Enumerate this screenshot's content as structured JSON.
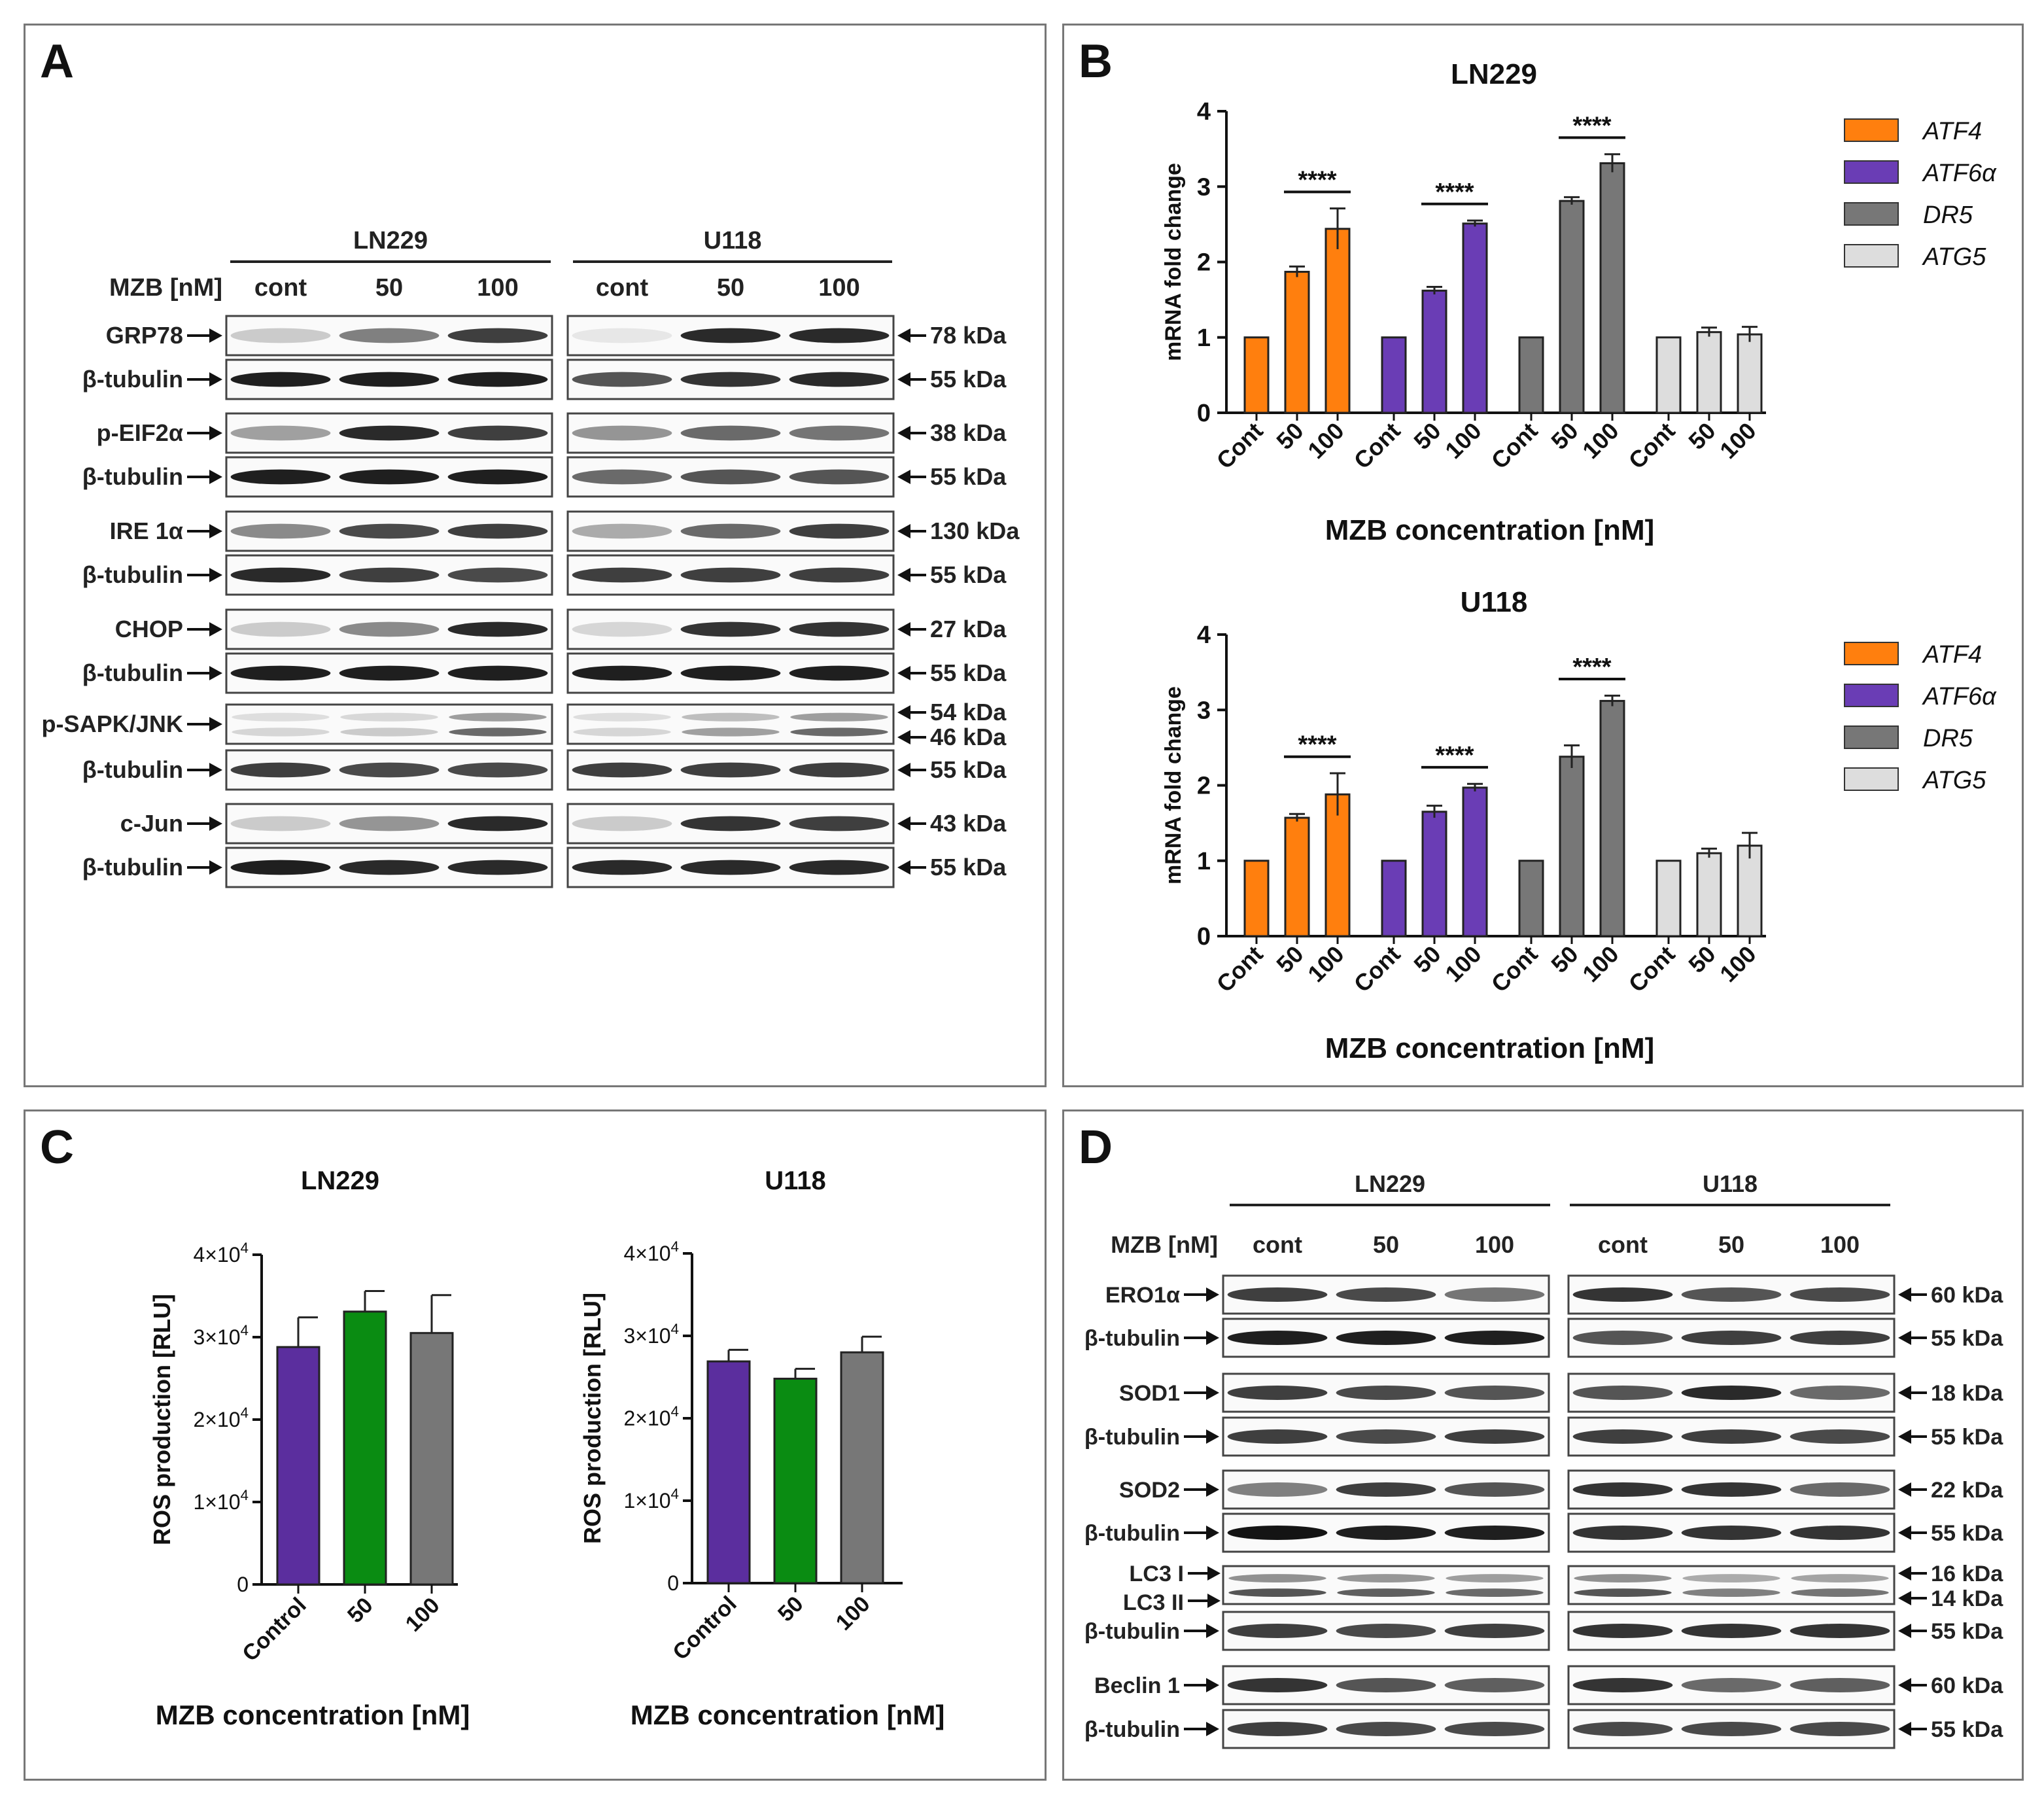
{
  "panel_A": {
    "label": "A",
    "mzb_label": "MZB [nM]",
    "lines": [
      "LN229",
      "U118"
    ],
    "lanes": [
      "cont",
      "50",
      "100"
    ],
    "blots": [
      {
        "protein": "GRP78",
        "kda": [
          "78 kDa"
        ],
        "ln": [
          0.15,
          0.5,
          0.8
        ],
        "u": [
          0.02,
          0.9,
          0.9
        ]
      },
      {
        "protein": "β-tubulin",
        "kda": [
          "55 kDa"
        ],
        "ln": [
          0.95,
          0.95,
          0.95
        ],
        "u": [
          0.7,
          0.85,
          0.9
        ]
      },
      {
        "protein": "p-EIF2α",
        "kda": [
          "38 kDa"
        ],
        "ln": [
          0.35,
          0.9,
          0.8
        ],
        "u": [
          0.4,
          0.6,
          0.55
        ]
      },
      {
        "protein": "β-tubulin",
        "kda": [
          "55 kDa"
        ],
        "ln": [
          0.95,
          0.95,
          0.95
        ],
        "u": [
          0.6,
          0.7,
          0.7
        ]
      },
      {
        "protein": "IRE 1α",
        "kda": [
          "130 kDa"
        ],
        "ln": [
          0.45,
          0.75,
          0.8
        ],
        "u": [
          0.3,
          0.6,
          0.8
        ]
      },
      {
        "protein": "β-tubulin",
        "kda": [
          "55 kDa"
        ],
        "ln": [
          0.9,
          0.8,
          0.75
        ],
        "u": [
          0.8,
          0.8,
          0.8
        ]
      },
      {
        "protein": "CHOP",
        "kda": [
          "27 kDa"
        ],
        "ln": [
          0.15,
          0.45,
          0.9
        ],
        "u": [
          0.1,
          0.85,
          0.85
        ]
      },
      {
        "protein": "β-tubulin",
        "kda": [
          "55 kDa"
        ],
        "ln": [
          0.95,
          0.95,
          0.95
        ],
        "u": [
          0.95,
          0.95,
          0.95
        ]
      },
      {
        "protein": "p-SAPK/JNK",
        "kda": [
          "54 kDa",
          "46 kDa"
        ],
        "ln": [
          0.1,
          0.15,
          0.6
        ],
        "u": [
          0.1,
          0.35,
          0.6
        ],
        "double": true
      },
      {
        "protein": "β-tubulin",
        "kda": [
          "55 kDa"
        ],
        "ln": [
          0.8,
          0.75,
          0.75
        ],
        "u": [
          0.8,
          0.8,
          0.8
        ]
      },
      {
        "protein": "c-Jun",
        "kda": [
          "43 kDa"
        ],
        "ln": [
          0.15,
          0.4,
          0.9
        ],
        "u": [
          0.15,
          0.85,
          0.8
        ]
      },
      {
        "protein": "β-tubulin",
        "kda": [
          "55 kDa"
        ],
        "ln": [
          0.95,
          0.9,
          0.9
        ],
        "u": [
          0.9,
          0.9,
          0.9
        ]
      }
    ]
  },
  "panel_B": {
    "label": "B"
  },
  "panel_C": {
    "label": "C"
  },
  "panel_D": {
    "label": "D",
    "mzb_label": "MZB [nM]",
    "lines": [
      "LN229",
      "U118"
    ],
    "lanes": [
      "cont",
      "50",
      "100"
    ],
    "blots": [
      {
        "protein": "ERO1α",
        "kda": [
          "60 kDa"
        ],
        "ln": [
          0.8,
          0.75,
          0.55
        ],
        "u": [
          0.85,
          0.7,
          0.75
        ]
      },
      {
        "protein": "β-tubulin",
        "kda": [
          "55 kDa"
        ],
        "ln": [
          0.95,
          0.95,
          0.95
        ],
        "u": [
          0.7,
          0.8,
          0.8
        ]
      },
      {
        "protein": "SOD1",
        "kda": [
          "18 kDa"
        ],
        "ln": [
          0.8,
          0.75,
          0.7
        ],
        "u": [
          0.7,
          0.9,
          0.6
        ]
      },
      {
        "protein": "β-tubulin",
        "kda": [
          "55 kDa"
        ],
        "ln": [
          0.8,
          0.75,
          0.8
        ],
        "u": [
          0.8,
          0.8,
          0.75
        ]
      },
      {
        "protein": "SOD2",
        "kda": [
          "22 kDa"
        ],
        "ln": [
          0.5,
          0.8,
          0.7
        ],
        "u": [
          0.85,
          0.85,
          0.6
        ]
      },
      {
        "protein": "β-tubulin",
        "kda": [
          "55 kDa"
        ],
        "ln": [
          1.0,
          0.95,
          0.95
        ],
        "u": [
          0.85,
          0.85,
          0.85
        ]
      },
      {
        "protein": "LC3 I",
        "protein2": "LC3 II",
        "kda": [
          "16 kDa",
          "14 kDa"
        ],
        "ln": [
          0.7,
          0.65,
          0.6
        ],
        "u": [
          0.7,
          0.5,
          0.55
        ],
        "double": true
      },
      {
        "protein": "β-tubulin",
        "kda": [
          "55 kDa"
        ],
        "ln": [
          0.8,
          0.75,
          0.8
        ],
        "u": [
          0.85,
          0.85,
          0.85
        ]
      },
      {
        "protein": "Beclin 1",
        "kda": [
          "60 kDa"
        ],
        "ln": [
          0.85,
          0.7,
          0.65
        ],
        "u": [
          0.85,
          0.6,
          0.65
        ]
      },
      {
        "protein": "β-tubulin",
        "kda": [
          "55 kDa"
        ],
        "ln": [
          0.8,
          0.75,
          0.75
        ],
        "u": [
          0.75,
          0.75,
          0.75
        ]
      }
    ]
  },
  "chart_data": [
    {
      "id": "B-LN229",
      "type": "bar",
      "title": "LN229",
      "ylabel": "mRNA fold change",
      "xlabel": "MZB concentration [nM]",
      "ylim": [
        0,
        4
      ],
      "yticks": [
        "0",
        "1",
        "2",
        "3",
        "4"
      ],
      "categories": [
        "Cont",
        "50",
        "100"
      ],
      "series": [
        {
          "name": "ATF4",
          "color": "#ff7f0e",
          "values": [
            1.0,
            1.87,
            2.44
          ],
          "errors": [
            0,
            0.07,
            0.27
          ]
        },
        {
          "name": "ATF6α",
          "color": "#6a3db5",
          "values": [
            1.0,
            1.62,
            2.51
          ],
          "errors": [
            0,
            0.05,
            0.04
          ]
        },
        {
          "name": "DR5",
          "color": "#777777",
          "values": [
            1.0,
            2.81,
            3.31
          ],
          "errors": [
            0,
            0.05,
            0.12
          ]
        },
        {
          "name": "ATG5",
          "color": "#dddddd",
          "values": [
            1.0,
            1.07,
            1.04
          ],
          "errors": [
            0,
            0.06,
            0.1
          ]
        }
      ],
      "significance": [
        "****",
        "****",
        "****"
      ]
    },
    {
      "id": "B-U118",
      "type": "bar",
      "title": "U118",
      "ylabel": "mRNA fold change",
      "xlabel": "MZB concentration [nM]",
      "ylim": [
        0,
        4
      ],
      "yticks": [
        "0",
        "1",
        "2",
        "3",
        "4"
      ],
      "categories": [
        "Cont",
        "50",
        "100"
      ],
      "series": [
        {
          "name": "ATF4",
          "color": "#ff7f0e",
          "values": [
            1.0,
            1.57,
            1.88
          ],
          "errors": [
            0,
            0.05,
            0.28
          ]
        },
        {
          "name": "ATF6α",
          "color": "#6a3db5",
          "values": [
            1.0,
            1.65,
            1.97
          ],
          "errors": [
            0,
            0.08,
            0.05
          ]
        },
        {
          "name": "DR5",
          "color": "#777777",
          "values": [
            1.0,
            2.38,
            3.12
          ],
          "errors": [
            0,
            0.15,
            0.07
          ]
        },
        {
          "name": "ATG5",
          "color": "#dddddd",
          "values": [
            1.0,
            1.1,
            1.2
          ],
          "errors": [
            0,
            0.06,
            0.17
          ]
        }
      ],
      "significance": [
        "****",
        "****",
        "****"
      ]
    },
    {
      "id": "C-LN229",
      "type": "bar",
      "title": "LN229",
      "ylabel": "ROS production [RLU]",
      "xlabel": "MZB concentration [nM]",
      "ylim": [
        0,
        40000
      ],
      "ytick_base": "×10",
      "yticks": [
        "0",
        "1",
        "2",
        "3",
        "4"
      ],
      "categories": [
        "Control",
        "50",
        "100"
      ],
      "colors": [
        "#5b2e9e",
        "#0a8c12",
        "#777777"
      ],
      "values": [
        28800,
        33100,
        30500
      ],
      "errors": [
        3600,
        2500,
        4600
      ]
    },
    {
      "id": "C-U118",
      "type": "bar",
      "title": "U118",
      "ylabel": "ROS production [RLU]",
      "xlabel": "MZB concentration [nM]",
      "ylim": [
        0,
        40000
      ],
      "ytick_base": "×10",
      "yticks": [
        "0",
        "1",
        "2",
        "3",
        "4"
      ],
      "categories": [
        "Control",
        "50",
        "100"
      ],
      "colors": [
        "#5b2e9e",
        "#0a8c12",
        "#777777"
      ],
      "values": [
        26900,
        24800,
        28000
      ],
      "errors": [
        1400,
        1200,
        1900
      ]
    }
  ]
}
